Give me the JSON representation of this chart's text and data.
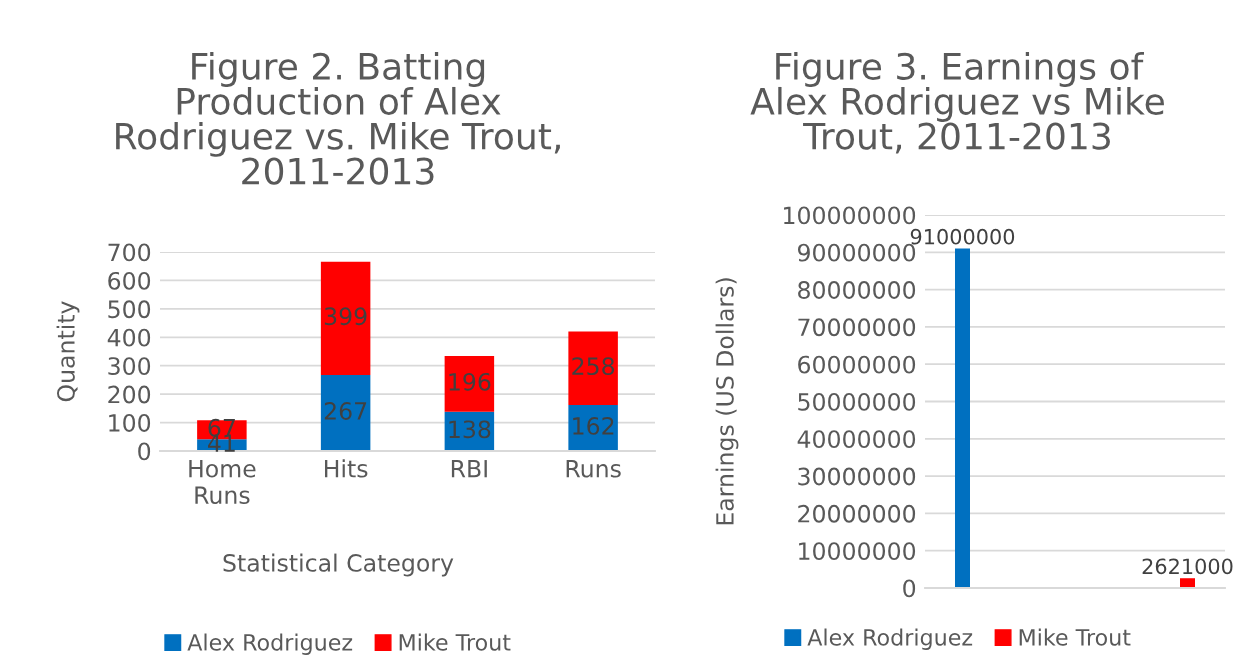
{
  "chart_data": [
    {
      "type": "bar",
      "title": "Figure 2. Batting Production of Alex Rodriguez vs. Mike Trout, 2011-2013",
      "xlabel": "Statistical Category",
      "ylabel": "Quantity",
      "categories": [
        "Home\nRuns",
        "Hits",
        "RBI",
        "Runs"
      ],
      "stacked": true,
      "series": [
        {
          "name": "Alex Rodriguez",
          "color": "#0070c0",
          "values": [
            41,
            267,
            138,
            162
          ]
        },
        {
          "name": "Mike Trout",
          "color": "#ff0000",
          "values": [
            67,
            399,
            196,
            258
          ]
        }
      ],
      "ylim": [
        0,
        700
      ],
      "yticks": [
        0,
        100,
        200,
        300,
        400,
        500,
        600,
        700
      ],
      "grid": "y",
      "legend": "bottom",
      "data_labels": true
    },
    {
      "type": "bar",
      "title": "Figure 3. Earnings of Alex Rodriguez vs Mike Trout, 2011-2013",
      "ylabel": "Earnings (US Dollars)",
      "categories": [
        null,
        null
      ],
      "series": [
        {
          "name": "Alex Rodriguez",
          "color": "#0070c0",
          "values": [
            91000000,
            null
          ]
        },
        {
          "name": "Mike Trout",
          "color": "#ff0000",
          "values": [
            null,
            2621000
          ]
        }
      ],
      "ylim": [
        0,
        100000000
      ],
      "yticks": [
        0,
        10000000,
        20000000,
        30000000,
        40000000,
        50000000,
        60000000,
        70000000,
        80000000,
        90000000,
        100000000
      ],
      "grid": "y",
      "legend": "bottom",
      "data_labels": true
    }
  ]
}
